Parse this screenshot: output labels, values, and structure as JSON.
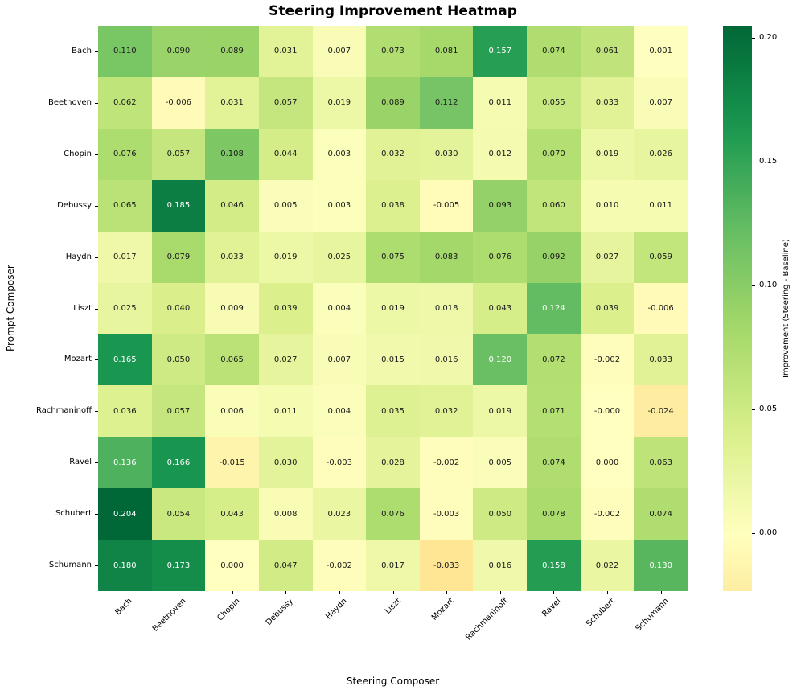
{
  "title": "Steering Improvement Heatmap",
  "chart_data": {
    "type": "heatmap",
    "title": "Steering Improvement Heatmap",
    "xlabel": "Steering Composer",
    "ylabel": "Prompt Composer",
    "x_categories": [
      "Bach",
      "Beethoven",
      "Chopin",
      "Debussy",
      "Haydn",
      "Liszt",
      "Mozart",
      "Rachmaninoff",
      "Ravel",
      "Schubert",
      "Schumann"
    ],
    "y_categories": [
      "Bach",
      "Beethoven",
      "Chopin",
      "Debussy",
      "Haydn",
      "Liszt",
      "Mozart",
      "Rachmaninoff",
      "Ravel",
      "Schubert",
      "Schumann"
    ],
    "values": [
      [
        "0.110",
        "0.090",
        "0.089",
        "0.031",
        "0.007",
        "0.073",
        "0.081",
        "0.157",
        "0.074",
        "0.061",
        "0.001"
      ],
      [
        "0.062",
        "-0.006",
        "0.031",
        "0.057",
        "0.019",
        "0.089",
        "0.112",
        "0.011",
        "0.055",
        "0.033",
        "0.007"
      ],
      [
        "0.076",
        "0.057",
        "0.108",
        "0.044",
        "0.003",
        "0.032",
        "0.030",
        "0.012",
        "0.070",
        "0.019",
        "0.026"
      ],
      [
        "0.065",
        "0.185",
        "0.046",
        "0.005",
        "0.003",
        "0.038",
        "-0.005",
        "0.093",
        "0.060",
        "0.010",
        "0.011"
      ],
      [
        "0.017",
        "0.079",
        "0.033",
        "0.019",
        "0.025",
        "0.075",
        "0.083",
        "0.076",
        "0.092",
        "0.027",
        "0.059"
      ],
      [
        "0.025",
        "0.040",
        "0.009",
        "0.039",
        "0.004",
        "0.019",
        "0.018",
        "0.043",
        "0.124",
        "0.039",
        "-0.006"
      ],
      [
        "0.165",
        "0.050",
        "0.065",
        "0.027",
        "0.007",
        "0.015",
        "0.016",
        "0.120",
        "0.072",
        "-0.002",
        "0.033"
      ],
      [
        "0.036",
        "0.057",
        "0.006",
        "0.011",
        "0.004",
        "0.035",
        "0.032",
        "0.019",
        "0.071",
        "-0.000",
        "-0.024"
      ],
      [
        "0.136",
        "0.166",
        "-0.015",
        "0.030",
        "-0.003",
        "0.028",
        "-0.002",
        "0.005",
        "0.074",
        "0.000",
        "0.063"
      ],
      [
        "0.204",
        "0.054",
        "0.043",
        "0.008",
        "0.023",
        "0.076",
        "-0.003",
        "0.050",
        "0.078",
        "-0.002",
        "0.074"
      ],
      [
        "0.180",
        "0.173",
        "0.000",
        "0.047",
        "-0.002",
        "0.017",
        "-0.033",
        "0.016",
        "0.158",
        "0.022",
        "0.130"
      ]
    ],
    "colorbar": {
      "label": "Improvement (Steering - Baseline)",
      "ticks": [
        "0.20",
        "0.15",
        "0.10",
        "0.05",
        "0.00"
      ],
      "tick_values": [
        0.2,
        0.15,
        0.1,
        0.05,
        0.0
      ],
      "vmax": 0.2048,
      "vmin": -0.0233,
      "position": "right"
    },
    "colormap": "RdYlGn centered at 0",
    "colors": {
      "max_green": "#006837",
      "mid_green": "#66bd63",
      "zero_yellow": "#ffffbf",
      "negative_orange": "#fee08b",
      "text_dark": "#1a1a1a",
      "text_light": "#ffffff"
    },
    "layout": {
      "grid": false,
      "x_tick_rotation_deg": 45
    }
  }
}
